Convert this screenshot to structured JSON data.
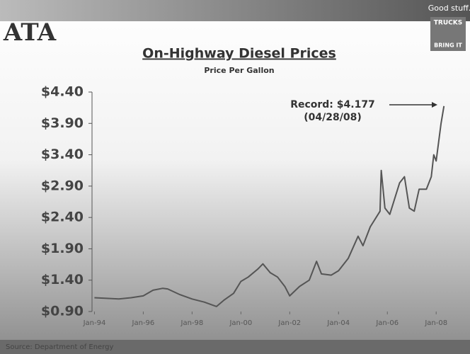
{
  "header": {
    "logo": "ATA",
    "tagline": "Good stuff.",
    "badge_top": "TRUCKS",
    "badge_bottom": "BRING IT"
  },
  "chart_data": {
    "type": "line",
    "title": "On-Highway Diesel Prices",
    "subtitle": "Price Per Gallon",
    "annotation": [
      "Record: $4.177",
      "(04/28/08)"
    ],
    "source": "Source: Department of Energy",
    "color": "#555555",
    "x": [
      1994.0,
      1994.5,
      1995.0,
      1995.5,
      1996.0,
      1996.4,
      1996.8,
      1997.0,
      1997.5,
      1998.0,
      1998.5,
      1999.0,
      1999.3,
      1999.7,
      2000.0,
      2000.3,
      2000.7,
      2000.9,
      2001.2,
      2001.5,
      2001.8,
      2002.0,
      2002.4,
      2002.8,
      2003.1,
      2003.3,
      2003.7,
      2004.0,
      2004.4,
      2004.8,
      2005.0,
      2005.3,
      2005.7,
      2005.75,
      2005.9,
      2006.1,
      2006.5,
      2006.7,
      2006.9,
      2007.1,
      2007.3,
      2007.6,
      2007.8,
      2007.9,
      2008.0,
      2008.2,
      2008.32
    ],
    "values": [
      1.12,
      1.11,
      1.1,
      1.12,
      1.15,
      1.24,
      1.27,
      1.26,
      1.17,
      1.1,
      1.05,
      0.98,
      1.08,
      1.19,
      1.38,
      1.45,
      1.58,
      1.66,
      1.52,
      1.45,
      1.3,
      1.15,
      1.3,
      1.4,
      1.7,
      1.5,
      1.48,
      1.55,
      1.75,
      2.1,
      1.95,
      2.25,
      2.5,
      3.15,
      2.55,
      2.45,
      2.95,
      3.05,
      2.55,
      2.5,
      2.85,
      2.85,
      3.05,
      3.4,
      3.3,
      3.9,
      4.177
    ],
    "xlim": [
      1993.9,
      2008.4
    ],
    "xticks": [
      {
        "value": 1994,
        "label": "Jan-94"
      },
      {
        "value": 1996,
        "label": "Jan-96"
      },
      {
        "value": 1998,
        "label": "Jan-98"
      },
      {
        "value": 2000,
        "label": "Jan-00"
      },
      {
        "value": 2002,
        "label": "Jan-02"
      },
      {
        "value": 2004,
        "label": "Jan-04"
      },
      {
        "value": 2006,
        "label": "Jan-06"
      },
      {
        "value": 2008,
        "label": "Jan-08"
      }
    ],
    "ylim": [
      0.9,
      4.4
    ],
    "yticks": [
      {
        "value": 0.9,
        "label": "$0.90"
      },
      {
        "value": 1.4,
        "label": "$1.40"
      },
      {
        "value": 1.9,
        "label": "$1.90"
      },
      {
        "value": 2.4,
        "label": "$2.40"
      },
      {
        "value": 2.9,
        "label": "$2.90"
      },
      {
        "value": 3.4,
        "label": "$3.40"
      },
      {
        "value": 3.9,
        "label": "$3.90"
      },
      {
        "value": 4.4,
        "label": "$4.40"
      }
    ]
  }
}
